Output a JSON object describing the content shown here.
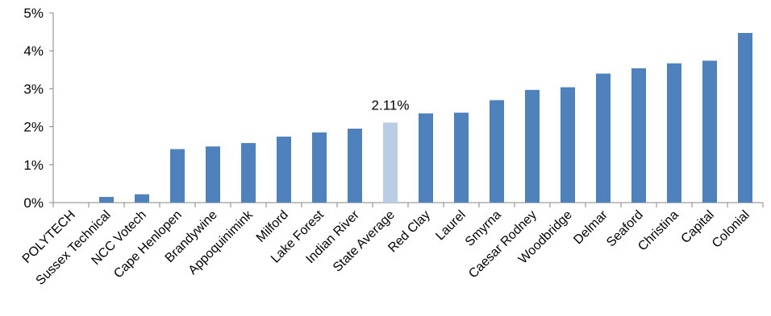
{
  "chart_data": {
    "type": "bar",
    "title": "",
    "xlabel": "",
    "ylabel": "",
    "ylim": [
      0,
      5
    ],
    "y_ticks": [
      "0%",
      "1%",
      "2%",
      "3%",
      "4%",
      "5%"
    ],
    "grid": false,
    "legend": "none",
    "categories": [
      "POLYTECH",
      "Sussex Technical",
      "NCC Votech",
      "Cape Henlopen",
      "Brandywine",
      "Appoquinimink",
      "Milford",
      "Lake Forest",
      "Indian River",
      "State Average",
      "Red Clay",
      "Laurel",
      "Smyrna",
      "Caesar Rodney",
      "Woodbridge",
      "Delmar",
      "Seaford",
      "Christina",
      "Capital",
      "Colonial"
    ],
    "values": [
      0.0,
      0.15,
      0.22,
      1.41,
      1.48,
      1.57,
      1.74,
      1.85,
      1.95,
      2.11,
      2.35,
      2.37,
      2.7,
      2.97,
      3.04,
      3.4,
      3.54,
      3.67,
      3.74,
      4.47
    ],
    "data_labels": [
      {
        "category": "State Average",
        "text": "2.11%"
      }
    ],
    "colors": {
      "bar": "#4f81bd",
      "highlight": "#b9cde5",
      "axis": "#868686"
    },
    "highlight_category": "State Average"
  }
}
